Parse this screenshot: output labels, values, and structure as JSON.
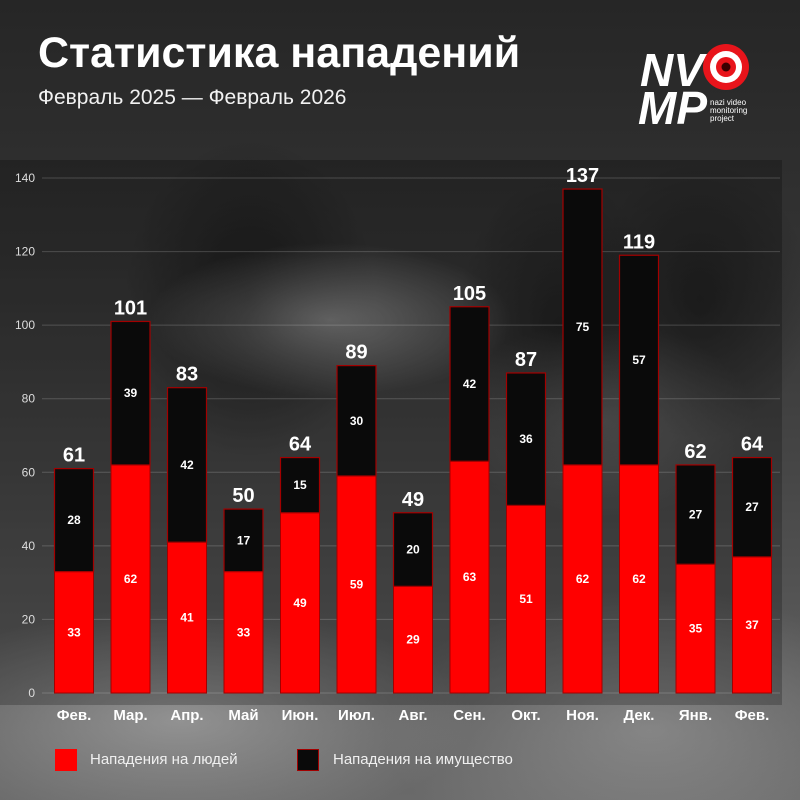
{
  "title": "Статистика нападений",
  "subtitle": "Февраль 2025 — Февраль 2026",
  "logo": {
    "top": "NV",
    "bottom": "MP",
    "tagline": [
      "nazi video",
      "monitoring",
      "project"
    ],
    "icon": "eye-icon"
  },
  "colors": {
    "people": "#ff0000",
    "property": "#0a0a0a",
    "outline": "#a30000",
    "eye_red": "#e8141b"
  },
  "chart_data": {
    "type": "bar",
    "stacked": true,
    "categories": [
      "Фев.",
      "Мар.",
      "Апр.",
      "Май",
      "Июн.",
      "Июл.",
      "Авг.",
      "Сен.",
      "Окт.",
      "Ноя.",
      "Дек.",
      "Янв.",
      "Фев."
    ],
    "series": [
      {
        "name": "Нападения на людей",
        "values": [
          33,
          62,
          41,
          33,
          49,
          59,
          29,
          63,
          51,
          62,
          62,
          35,
          37
        ]
      },
      {
        "name": "Нападения на имущество",
        "values": [
          28,
          39,
          42,
          17,
          15,
          30,
          20,
          42,
          36,
          75,
          57,
          27,
          27
        ]
      }
    ],
    "totals": [
      61,
      101,
      83,
      50,
      64,
      89,
      49,
      105,
      87,
      137,
      119,
      62,
      64
    ],
    "yticks": [
      0,
      20,
      40,
      60,
      80,
      100,
      120,
      140
    ],
    "ylim": [
      0,
      140
    ],
    "grid": true,
    "legend_position": "bottom-left"
  }
}
